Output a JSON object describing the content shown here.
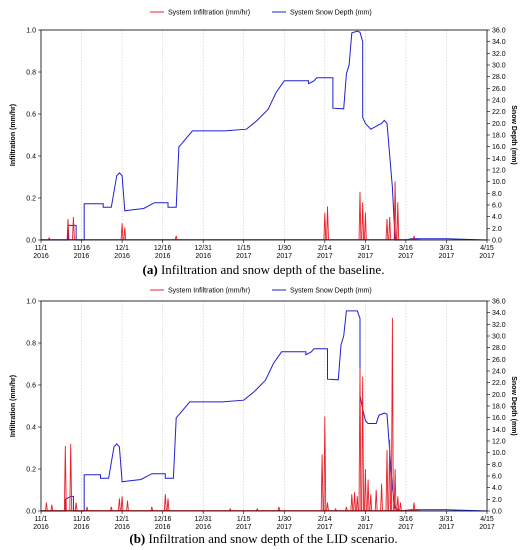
{
  "chart_data": [
    {
      "type": "line",
      "panel": "a",
      "caption_letter": "(a)",
      "caption_text": "Infiltration and snow depth of the baseline.",
      "ylabel_left": "Infiltration (mm/hr)",
      "ylabel_right": "Snow Depth (mm)",
      "ylim_left": [
        0,
        1.0
      ],
      "ylim_right": [
        0,
        36
      ],
      "yticks_left": [
        "0.0",
        "0.2",
        "0.4",
        "0.6",
        "0.8",
        "1.0"
      ],
      "yticks_right": [
        "0.0",
        "2.0",
        "4.0",
        "6.0",
        "8.0",
        "10.0",
        "12.0",
        "14.0",
        "16.0",
        "18.0",
        "20.0",
        "22.0",
        "24.0",
        "26.0",
        "28.0",
        "30.0",
        "32.0",
        "34.0",
        "36.0"
      ],
      "xlim_days": [
        0,
        165
      ],
      "xticks": [
        {
          "day": 0,
          "label1": "11/1",
          "label2": "2016"
        },
        {
          "day": 15,
          "label1": "11/16",
          "label2": "2016"
        },
        {
          "day": 30,
          "label1": "12/1",
          "label2": "2016"
        },
        {
          "day": 45,
          "label1": "12/16",
          "label2": "2016"
        },
        {
          "day": 60,
          "label1": "12/31",
          "label2": "2016"
        },
        {
          "day": 75,
          "label1": "1/15",
          "label2": "2017"
        },
        {
          "day": 90,
          "label1": "1/30",
          "label2": "2017"
        },
        {
          "day": 105,
          "label1": "2/14",
          "label2": "2017"
        },
        {
          "day": 120,
          "label1": "3/1",
          "label2": "2017"
        },
        {
          "day": 135,
          "label1": "3/16",
          "label2": "2017"
        },
        {
          "day": 150,
          "label1": "3/31",
          "label2": "2017"
        },
        {
          "day": 165,
          "label1": "4/15",
          "label2": "2017"
        }
      ],
      "series": [
        {
          "name": "System Infiltration (mm/hr)",
          "color": "#e8202a",
          "axis": "left",
          "spikes": [
            [
              3,
              0.01
            ],
            [
              10,
              0.1
            ],
            [
              12,
              0.11
            ],
            [
              30,
              0.08
            ],
            [
              31,
              0.06
            ],
            [
              50,
              0.02
            ],
            [
              105,
              0.13
            ],
            [
              106,
              0.16
            ],
            [
              118,
              0.23
            ],
            [
              119,
              0.18
            ],
            [
              120,
              0.13
            ],
            [
              128,
              0.1
            ],
            [
              129,
              0.11
            ],
            [
              131,
              0.28
            ],
            [
              132,
              0.18
            ],
            [
              138,
              0.02
            ]
          ]
        },
        {
          "name": "System Snow Depth (mm)",
          "color": "#2020d0",
          "axis": "right",
          "points": [
            [
              0,
              0
            ],
            [
              10,
              0
            ],
            [
              10,
              2.5
            ],
            [
              13,
              2.5
            ],
            [
              13,
              0
            ],
            [
              16,
              0
            ],
            [
              16,
              6.2
            ],
            [
              23,
              6.2
            ],
            [
              23,
              5.6
            ],
            [
              26,
              5.6
            ],
            [
              28,
              11.0
            ],
            [
              29,
              11.5
            ],
            [
              30,
              11.0
            ],
            [
              31,
              5.0
            ],
            [
              34,
              5.2
            ],
            [
              38,
              5.4
            ],
            [
              42,
              6.4
            ],
            [
              47,
              6.4
            ],
            [
              47,
              5.6
            ],
            [
              50,
              5.6
            ],
            [
              51,
              16.0
            ],
            [
              52,
              16.5
            ],
            [
              56,
              18.7
            ],
            [
              68,
              18.7
            ],
            [
              76,
              19.0
            ],
            [
              80,
              20.5
            ],
            [
              84,
              22.4
            ],
            [
              87,
              25.3
            ],
            [
              90,
              27.3
            ],
            [
              99,
              27.3
            ],
            [
              99,
              26.8
            ],
            [
              101,
              27.3
            ],
            [
              102,
              27.8
            ],
            [
              108,
              27.8
            ],
            [
              108,
              22.6
            ],
            [
              112,
              22.5
            ],
            [
              113,
              28.5
            ],
            [
              114,
              30.0
            ],
            [
              115,
              35.5
            ],
            [
              117,
              35.8
            ],
            [
              118,
              35.6
            ],
            [
              119,
              34.0
            ],
            [
              119,
              21.0
            ],
            [
              120,
              20.0
            ],
            [
              121,
              19.5
            ],
            [
              122,
              19.0
            ],
            [
              126,
              20.0
            ],
            [
              127,
              20.5
            ],
            [
              128,
              20.0
            ],
            [
              130,
              9.0
            ],
            [
              131,
              0
            ],
            [
              135,
              0
            ],
            [
              137,
              0.2
            ],
            [
              150,
              0.2
            ],
            [
              165,
              0
            ]
          ]
        }
      ]
    },
    {
      "type": "line",
      "panel": "b",
      "caption_letter": "(b)",
      "caption_text": "Infiltration and snow depth of the LID scenario.",
      "ylabel_left": "Infiltration (mm/hr)",
      "ylabel_right": "Snow Depth (mm)",
      "ylim_left": [
        0,
        1.0
      ],
      "ylim_right": [
        0,
        36
      ],
      "yticks_left": [
        "0.0",
        "0.2",
        "0.4",
        "0.6",
        "0.8",
        "1.0"
      ],
      "yticks_right": [
        "0.0",
        "2.0",
        "4.0",
        "6.0",
        "8.0",
        "10.0",
        "12.0",
        "14.0",
        "16.0",
        "18.0",
        "20.0",
        "22.0",
        "24.0",
        "26.0",
        "28.0",
        "30.0",
        "32.0",
        "34.0",
        "36.0"
      ],
      "xlim_days": [
        0,
        165
      ],
      "xticks": [
        {
          "day": 0,
          "label1": "11/1",
          "label2": "2016"
        },
        {
          "day": 15,
          "label1": "11/16",
          "label2": "2016"
        },
        {
          "day": 30,
          "label1": "12/1",
          "label2": "2016"
        },
        {
          "day": 45,
          "label1": "12/16",
          "label2": "2016"
        },
        {
          "day": 60,
          "label1": "12/31",
          "label2": "2016"
        },
        {
          "day": 75,
          "label1": "1/15",
          "label2": "2017"
        },
        {
          "day": 90,
          "label1": "1/30",
          "label2": "2017"
        },
        {
          "day": 105,
          "label1": "2/14",
          "label2": "2017"
        },
        {
          "day": 120,
          "label1": "3/1",
          "label2": "2017"
        },
        {
          "day": 135,
          "label1": "3/16",
          "label2": "2017"
        },
        {
          "day": 150,
          "label1": "3/31",
          "label2": "2017"
        },
        {
          "day": 165,
          "label1": "4/15",
          "label2": "2017"
        }
      ],
      "series": [
        {
          "name": "System Infiltration (mm/hr)",
          "color": "#e8202a",
          "axis": "left",
          "spikes": [
            [
              2,
              0.04
            ],
            [
              4,
              0.03
            ],
            [
              9,
              0.31
            ],
            [
              11,
              0.32
            ],
            [
              13,
              0.04
            ],
            [
              17,
              0.02
            ],
            [
              26,
              0.02
            ],
            [
              29,
              0.06
            ],
            [
              30,
              0.07
            ],
            [
              32,
              0.05
            ],
            [
              41,
              0.02
            ],
            [
              46,
              0.08
            ],
            [
              47,
              0.06
            ],
            [
              70,
              0.01
            ],
            [
              80,
              0.01
            ],
            [
              88,
              0.02
            ],
            [
              104,
              0.27
            ],
            [
              105,
              0.45
            ],
            [
              106,
              0.04
            ],
            [
              109,
              0.01
            ],
            [
              113,
              0.02
            ],
            [
              115,
              0.08
            ],
            [
              116,
              0.09
            ],
            [
              117,
              0.07
            ],
            [
              118,
              0.68
            ],
            [
              119,
              0.64
            ],
            [
              120,
              0.2
            ],
            [
              121,
              0.15
            ],
            [
              122,
              0.08
            ],
            [
              124,
              0.1
            ],
            [
              126,
              0.13
            ],
            [
              128,
              0.29
            ],
            [
              129,
              0.34
            ],
            [
              130,
              0.92
            ],
            [
              131,
              0.2
            ],
            [
              132,
              0.07
            ],
            [
              133,
              0.04
            ],
            [
              138,
              0.04
            ]
          ]
        },
        {
          "name": "System Snow Depth (mm)",
          "color": "#2020d0",
          "axis": "right",
          "points": [
            [
              0,
              0
            ],
            [
              9,
              0
            ],
            [
              9,
              2.0
            ],
            [
              11,
              2.5
            ],
            [
              12,
              2.5
            ],
            [
              12,
              0
            ],
            [
              16,
              0
            ],
            [
              16,
              6.2
            ],
            [
              22,
              6.2
            ],
            [
              22,
              5.6
            ],
            [
              25,
              5.6
            ],
            [
              27,
              11.0
            ],
            [
              28,
              11.5
            ],
            [
              29,
              11.0
            ],
            [
              30,
              5.0
            ],
            [
              33,
              5.2
            ],
            [
              37,
              5.4
            ],
            [
              41,
              6.4
            ],
            [
              46,
              6.4
            ],
            [
              46,
              5.6
            ],
            [
              49,
              5.6
            ],
            [
              50,
              16.0
            ],
            [
              51,
              16.5
            ],
            [
              55,
              18.7
            ],
            [
              67,
              18.7
            ],
            [
              75,
              19.0
            ],
            [
              79,
              20.5
            ],
            [
              83,
              22.4
            ],
            [
              86,
              25.3
            ],
            [
              89,
              27.3
            ],
            [
              98,
              27.3
            ],
            [
              98,
              26.8
            ],
            [
              100,
              27.3
            ],
            [
              101,
              27.8
            ],
            [
              106,
              27.8
            ],
            [
              106,
              22.6
            ],
            [
              110,
              22.5
            ],
            [
              111,
              28.5
            ],
            [
              112,
              30.0
            ],
            [
              113,
              34.3
            ],
            [
              117,
              34.3
            ],
            [
              118,
              33.0
            ],
            [
              118,
              19.8
            ],
            [
              119,
              17.5
            ],
            [
              120,
              15.5
            ],
            [
              121,
              15.0
            ],
            [
              124,
              15.0
            ],
            [
              125,
              16.4
            ],
            [
              127,
              16.8
            ],
            [
              128,
              16.6
            ],
            [
              130,
              4.0
            ],
            [
              131,
              0.5
            ],
            [
              133,
              0
            ],
            [
              137,
              0.2
            ],
            [
              150,
              0.2
            ],
            [
              165,
              0
            ]
          ]
        }
      ]
    }
  ]
}
